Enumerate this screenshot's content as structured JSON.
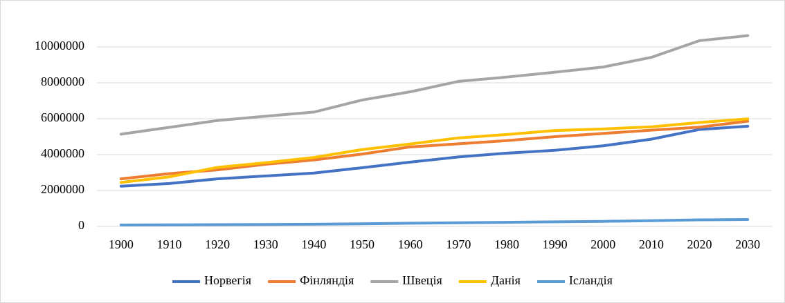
{
  "chart_data": {
    "type": "line",
    "categories": [
      "1900",
      "1910",
      "1920",
      "1930",
      "1940",
      "1950",
      "1960",
      "1970",
      "1980",
      "1990",
      "2000",
      "2010",
      "2020",
      "2030"
    ],
    "series": [
      {
        "name": "Норвегія",
        "color": "#4472c4",
        "values": [
          2240000,
          2390000,
          2650000,
          2810000,
          2970000,
          3270000,
          3580000,
          3870000,
          4080000,
          4240000,
          4490000,
          4860000,
          5400000,
          5580000
        ]
      },
      {
        "name": "Фінляндія",
        "color": "#ed7d31",
        "values": [
          2650000,
          2940000,
          3150000,
          3460000,
          3700000,
          4030000,
          4430000,
          4600000,
          4780000,
          5000000,
          5180000,
          5360000,
          5530000,
          5860000
        ]
      },
      {
        "name": "Швеція",
        "color": "#a5a5a5",
        "values": [
          5140000,
          5520000,
          5900000,
          6140000,
          6370000,
          7040000,
          7500000,
          8080000,
          8320000,
          8590000,
          8880000,
          9420000,
          10350000,
          10630000
        ]
      },
      {
        "name": "Данія",
        "color": "#ffc000",
        "values": [
          2450000,
          2760000,
          3290000,
          3550000,
          3840000,
          4280000,
          4590000,
          4930000,
          5120000,
          5340000,
          5430000,
          5550000,
          5790000,
          5990000
        ]
      },
      {
        "name": "Ісландія",
        "color": "#5b9bd5",
        "values": [
          78000,
          85000,
          94000,
          108000,
          121000,
          143000,
          176000,
          204000,
          228000,
          255000,
          281000,
          318000,
          364000,
          383000
        ]
      }
    ],
    "ylim": [
      0,
      11000000
    ],
    "yticks": [
      0,
      2000000,
      4000000,
      6000000,
      8000000,
      10000000
    ],
    "grid": true,
    "legend": "bottom"
  }
}
